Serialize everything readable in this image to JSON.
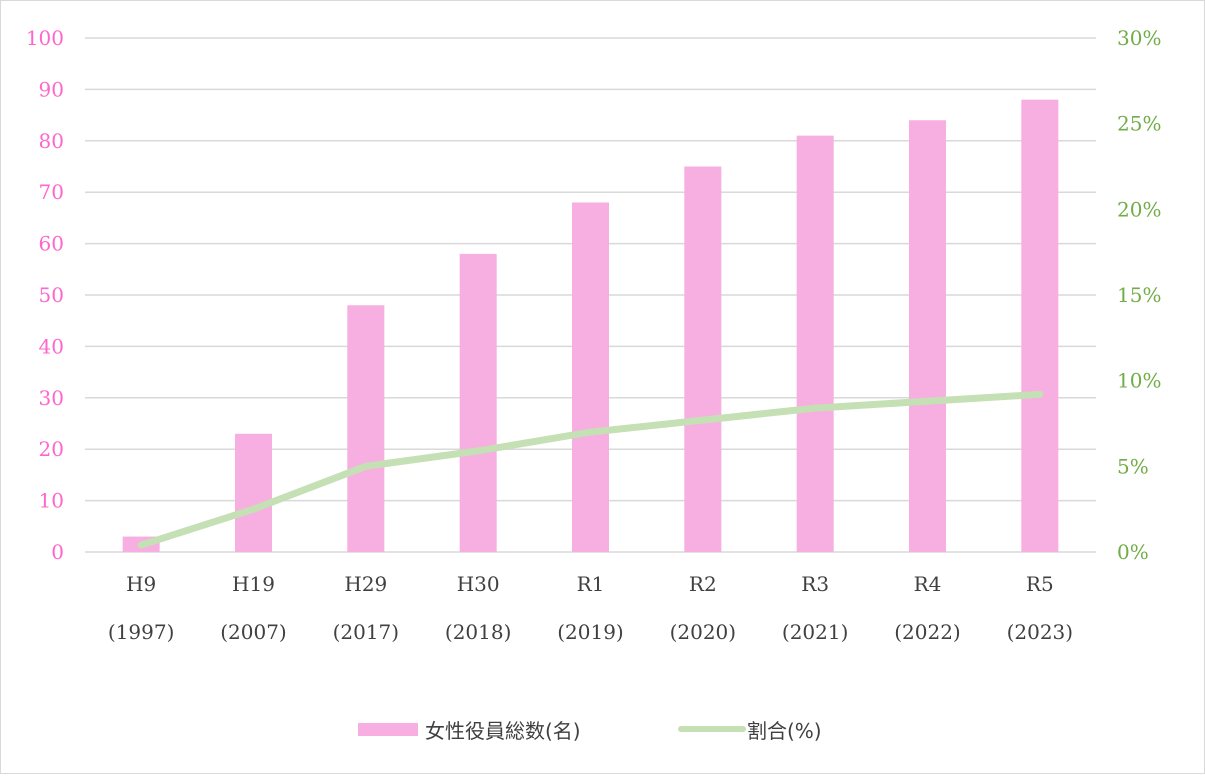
{
  "chart_data": {
    "type": "bar",
    "categories": [
      [
        "H9",
        "(1997)"
      ],
      [
        "H19",
        "(2007)"
      ],
      [
        "H29",
        "(2017)"
      ],
      [
        "H30",
        "(2018)"
      ],
      [
        "R1",
        "(2019)"
      ],
      [
        "R2",
        "(2020)"
      ],
      [
        "R3",
        "(2021)"
      ],
      [
        "R4",
        "(2022)"
      ],
      [
        "R5",
        "(2023)"
      ]
    ],
    "series": [
      {
        "name": "女性役員総数(名)",
        "type": "bar",
        "axis": "left",
        "color": "#f7aee0",
        "values": [
          3,
          23,
          48,
          58,
          68,
          75,
          81,
          84,
          88
        ]
      },
      {
        "name": "割合(%)",
        "type": "line",
        "axis": "right",
        "color": "#c5e0b4",
        "values": [
          0.4,
          2.5,
          5.0,
          5.9,
          7.0,
          7.7,
          8.4,
          8.8,
          9.2
        ]
      }
    ],
    "y_left": {
      "range": [
        0,
        100
      ],
      "ticks": [
        "0",
        "10",
        "20",
        "30",
        "40",
        "50",
        "60",
        "70",
        "80",
        "90",
        "100"
      ],
      "color": "#ff66cc"
    },
    "y_right": {
      "range": [
        0,
        30
      ],
      "ticks": [
        "0%",
        "5%",
        "10%",
        "15%",
        "20%",
        "25%",
        "30%"
      ],
      "color": "#70ad47"
    },
    "grid": true,
    "legend_position": "bottom"
  }
}
